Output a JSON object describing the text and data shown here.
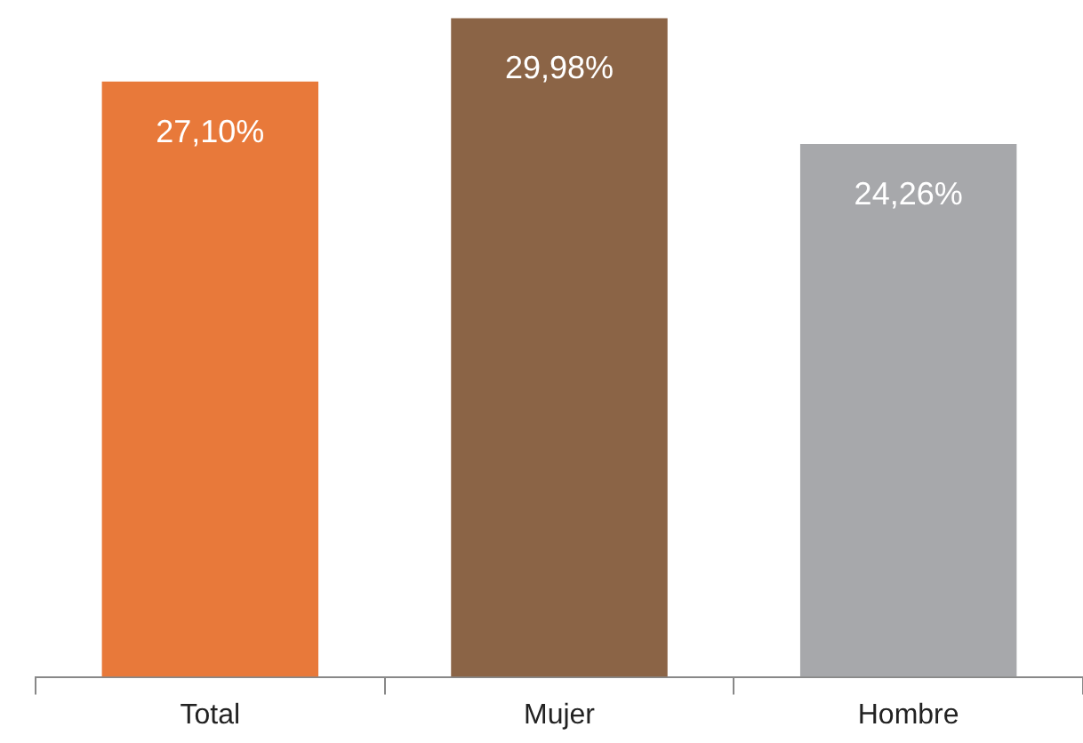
{
  "chart_data": {
    "type": "bar",
    "categories": [
      "Total",
      "Mujer",
      "Hombre"
    ],
    "values": [
      27.1,
      29.98,
      24.26
    ],
    "colors": [
      "#e8793a",
      "#8b6446",
      "#a7a8ab"
    ],
    "value_labels": [
      "27,10%",
      "29,98%",
      "24,26%"
    ],
    "grid": false,
    "legend": false
  }
}
